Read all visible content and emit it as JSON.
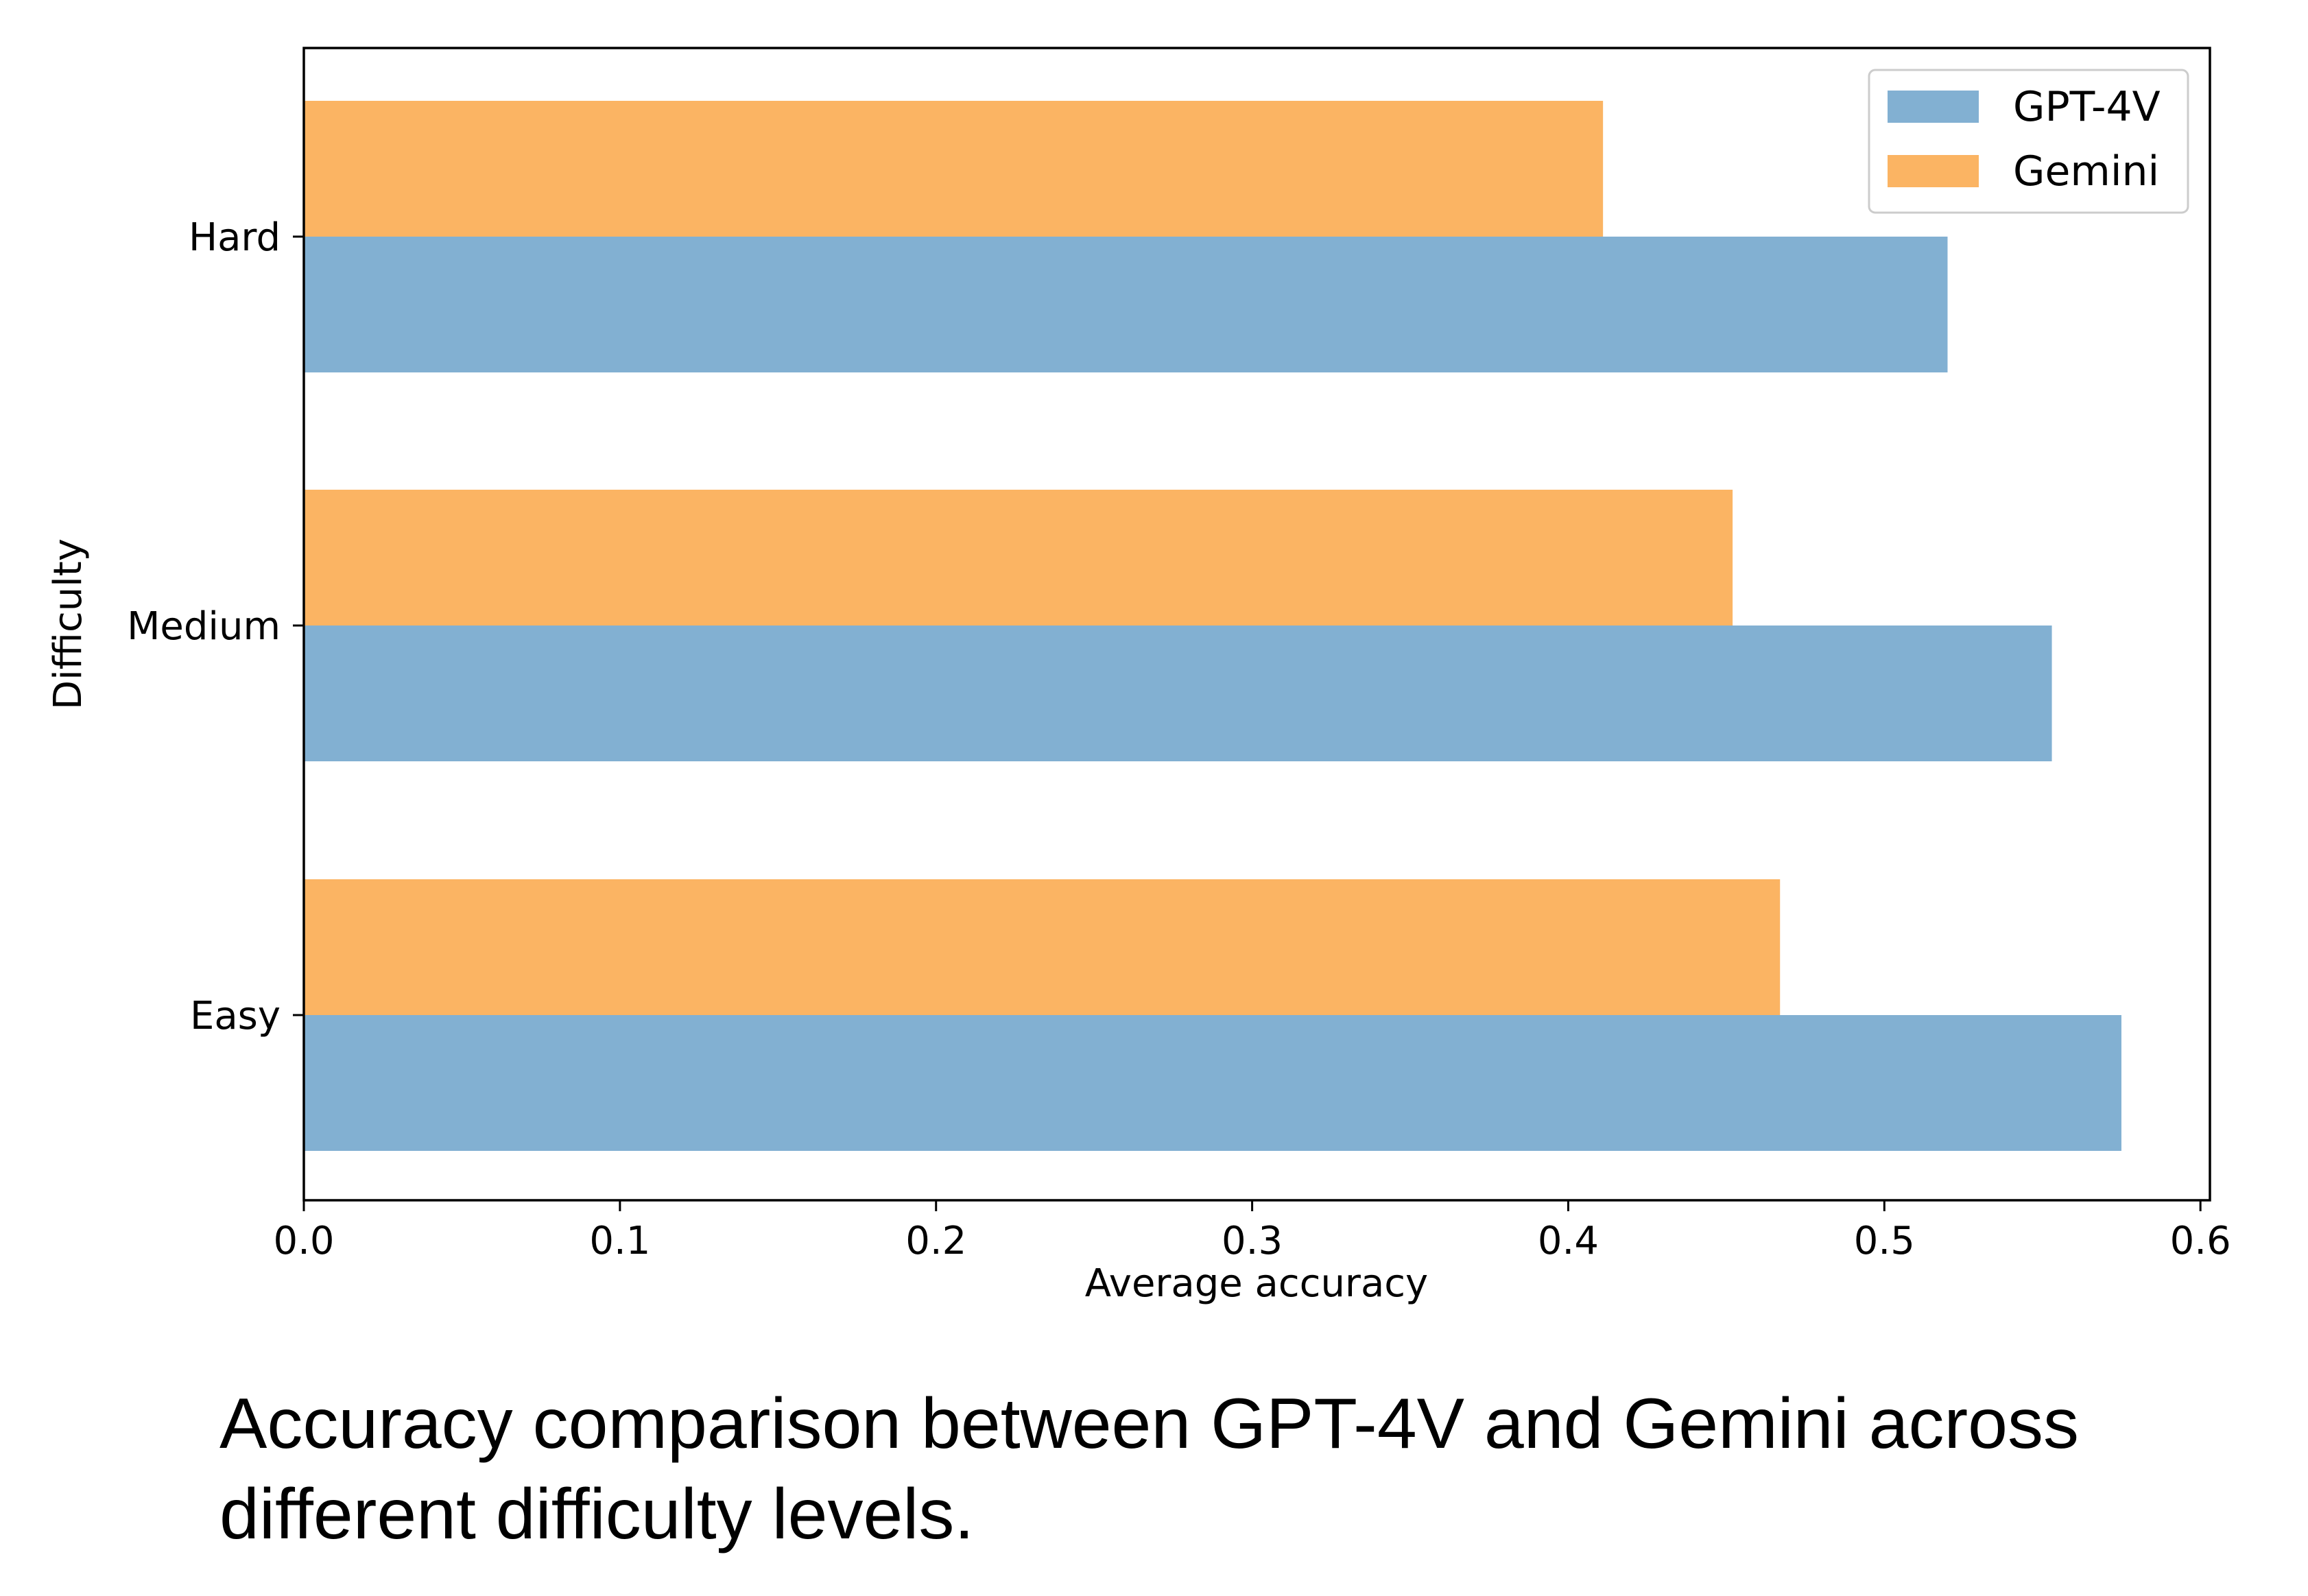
{
  "caption": "Accuracy comparison between GPT-4V and Gemini across different difficulty levels.",
  "chart_data": {
    "type": "bar",
    "orientation": "horizontal",
    "categories": [
      "Easy",
      "Medium",
      "Hard"
    ],
    "series": [
      {
        "name": "GPT-4V",
        "color": "#82b0d2",
        "values": [
          0.575,
          0.553,
          0.52
        ]
      },
      {
        "name": "Gemini",
        "color": "#fbb463",
        "values": [
          0.467,
          0.452,
          0.411
        ]
      }
    ],
    "xlabel": "Average accuracy",
    "ylabel": "Difficulty",
    "xlim": [
      0,
      0.603
    ],
    "xticks": [
      0.0,
      0.1,
      0.2,
      0.3,
      0.4,
      0.5,
      0.6
    ],
    "xtick_labels": [
      "0.0",
      "0.1",
      "0.2",
      "0.3",
      "0.4",
      "0.5",
      "0.6"
    ],
    "grid": false,
    "legend_position": "upper right"
  }
}
